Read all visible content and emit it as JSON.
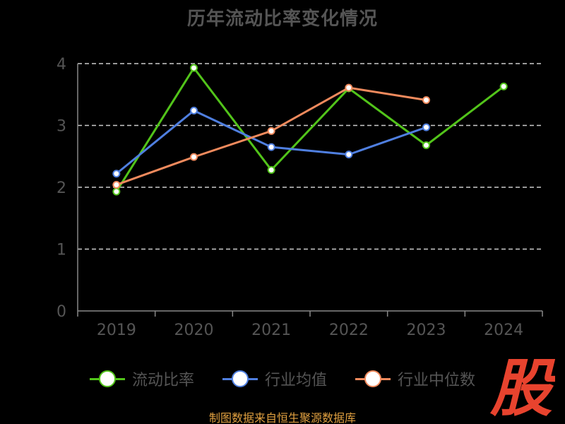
{
  "chart_data": {
    "type": "line",
    "title": "历年流动比率变化情况",
    "categories": [
      "2019",
      "2020",
      "2021",
      "2022",
      "2023",
      "2024"
    ],
    "ylim": [
      0,
      4
    ],
    "yticks": [
      0,
      1,
      2,
      3,
      4
    ],
    "grid": true,
    "legend_position": "bottom",
    "series": [
      {
        "name": "流动比率",
        "color": "#52c41a",
        "values": [
          1.93,
          3.93,
          2.28,
          3.6,
          2.68,
          3.63
        ]
      },
      {
        "name": "行业均值",
        "color": "#4f7fe0",
        "values": [
          2.22,
          3.24,
          2.65,
          2.53,
          2.97,
          null
        ]
      },
      {
        "name": "行业中位数",
        "color": "#f08a5d",
        "values": [
          2.04,
          2.49,
          2.91,
          3.61,
          3.41,
          null
        ]
      }
    ]
  },
  "footer": {
    "source": "制图数据来自恒生聚源数据库"
  },
  "watermark": {
    "text": "股",
    "color": "#e8432e"
  }
}
